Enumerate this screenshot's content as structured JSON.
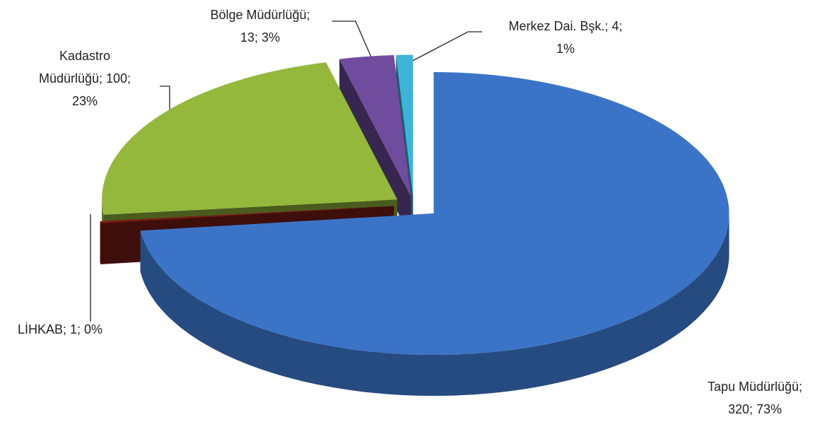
{
  "chart_data": {
    "type": "pie3d",
    "values": [
      320,
      1,
      100,
      13,
      4
    ],
    "value_labels": [
      [
        "Tapu Müdürlüğü;",
        "320; 73%"
      ],
      [
        "LİHKAB; 1; 0%"
      ],
      [
        "Kadastro",
        "Müdürlüğü; 100;",
        "23%"
      ],
      [
        "Bölge Müdürlüğü;",
        "13; 3%"
      ],
      [
        "Merkez Dai. Bşk.; 4;",
        "1%"
      ]
    ],
    "colors": [
      "#3b74c6",
      "#7d1c16",
      "#93b83c",
      "#6f4c9e",
      "#3fb4da"
    ]
  }
}
